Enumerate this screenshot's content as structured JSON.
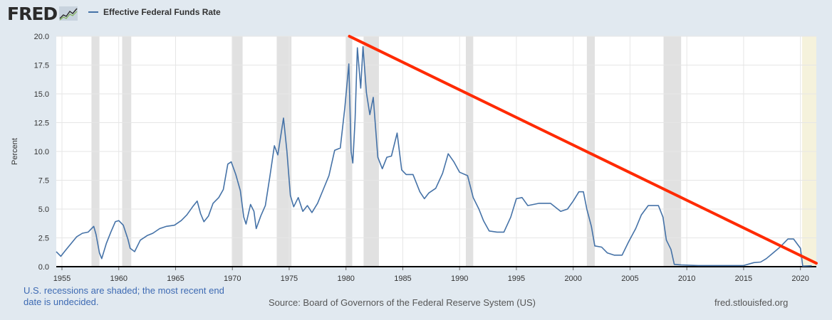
{
  "logo": {
    "text": "FRED"
  },
  "legend": {
    "series_label": "Effective Federal Funds Rate"
  },
  "footer": {
    "recession_note": "U.S. recessions are shaded; the most recent end date is undecided.",
    "source": "Source: Board of Governors of the Federal Reserve System (US)",
    "site": "fred.stlouisfed.org"
  },
  "colors": {
    "background": "#e1e9f0",
    "plot": "#ffffff",
    "series": "#4572a7",
    "recession": "#e1e1e1",
    "recent_recession": "#f5f2dc",
    "overlay": "#ff2a00",
    "logo_text": "#2a2a2a"
  },
  "chart_data": {
    "type": "line",
    "ylabel": "Percent",
    "ylim": [
      0,
      20
    ],
    "xlim": [
      1954.5,
      2021.4
    ],
    "y_ticks": [
      "0.0",
      "2.5",
      "5.0",
      "7.5",
      "10.0",
      "12.5",
      "15.0",
      "17.5",
      "20.0"
    ],
    "x_ticks": [
      "1955",
      "1960",
      "1965",
      "1970",
      "1975",
      "1980",
      "1985",
      "1990",
      "1995",
      "2000",
      "2005",
      "2010",
      "2015",
      "2020"
    ],
    "grid": true,
    "legend_position": "top-left",
    "recessions": [
      [
        1957.6,
        1958.3
      ],
      [
        1960.3,
        1961.1
      ],
      [
        1969.95,
        1970.9
      ],
      [
        1973.9,
        1975.2
      ],
      [
        1980.0,
        1980.55
      ],
      [
        1981.55,
        1982.9
      ],
      [
        1990.55,
        1991.2
      ],
      [
        2001.2,
        2001.9
      ],
      [
        2007.95,
        2009.5
      ]
    ],
    "recent_recession": [
      2020.15,
      2021.4
    ],
    "series": [
      {
        "name": "Effective Federal Funds Rate",
        "color": "#4572a7",
        "points": [
          [
            1954.5,
            1.3
          ],
          [
            1954.9,
            0.9
          ],
          [
            1955.3,
            1.4
          ],
          [
            1955.8,
            2.0
          ],
          [
            1956.3,
            2.6
          ],
          [
            1956.8,
            2.9
          ],
          [
            1957.3,
            3.0
          ],
          [
            1957.8,
            3.5
          ],
          [
            1958.0,
            2.8
          ],
          [
            1958.3,
            1.2
          ],
          [
            1958.5,
            0.7
          ],
          [
            1958.9,
            2.0
          ],
          [
            1959.3,
            3.0
          ],
          [
            1959.7,
            3.9
          ],
          [
            1960.0,
            4.0
          ],
          [
            1960.4,
            3.6
          ],
          [
            1960.8,
            2.4
          ],
          [
            1961.0,
            1.6
          ],
          [
            1961.4,
            1.3
          ],
          [
            1961.9,
            2.3
          ],
          [
            1962.5,
            2.7
          ],
          [
            1963.0,
            2.9
          ],
          [
            1963.6,
            3.3
          ],
          [
            1964.2,
            3.5
          ],
          [
            1964.9,
            3.6
          ],
          [
            1965.5,
            4.0
          ],
          [
            1966.0,
            4.5
          ],
          [
            1966.5,
            5.2
          ],
          [
            1966.9,
            5.7
          ],
          [
            1967.2,
            4.6
          ],
          [
            1967.5,
            3.9
          ],
          [
            1967.9,
            4.4
          ],
          [
            1968.3,
            5.5
          ],
          [
            1968.8,
            6.0
          ],
          [
            1969.2,
            6.7
          ],
          [
            1969.6,
            8.9
          ],
          [
            1969.9,
            9.1
          ],
          [
            1970.3,
            8.0
          ],
          [
            1970.7,
            6.6
          ],
          [
            1971.0,
            4.3
          ],
          [
            1971.2,
            3.7
          ],
          [
            1971.6,
            5.4
          ],
          [
            1971.9,
            4.8
          ],
          [
            1972.1,
            3.3
          ],
          [
            1972.5,
            4.4
          ],
          [
            1972.9,
            5.3
          ],
          [
            1973.3,
            7.8
          ],
          [
            1973.7,
            10.5
          ],
          [
            1974.0,
            9.7
          ],
          [
            1974.5,
            12.9
          ],
          [
            1974.8,
            10.0
          ],
          [
            1975.1,
            6.2
          ],
          [
            1975.4,
            5.2
          ],
          [
            1975.8,
            6.0
          ],
          [
            1976.2,
            4.8
          ],
          [
            1976.6,
            5.3
          ],
          [
            1977.0,
            4.7
          ],
          [
            1977.5,
            5.5
          ],
          [
            1978.0,
            6.7
          ],
          [
            1978.5,
            7.9
          ],
          [
            1979.0,
            10.1
          ],
          [
            1979.5,
            10.3
          ],
          [
            1979.9,
            13.8
          ],
          [
            1980.25,
            17.6
          ],
          [
            1980.45,
            10.0
          ],
          [
            1980.6,
            9.0
          ],
          [
            1980.8,
            12.8
          ],
          [
            1981.0,
            19.0
          ],
          [
            1981.3,
            15.5
          ],
          [
            1981.5,
            19.1
          ],
          [
            1981.8,
            15.1
          ],
          [
            1982.1,
            13.2
          ],
          [
            1982.4,
            14.7
          ],
          [
            1982.8,
            9.5
          ],
          [
            1983.2,
            8.5
          ],
          [
            1983.6,
            9.5
          ],
          [
            1984.0,
            9.6
          ],
          [
            1984.5,
            11.6
          ],
          [
            1984.9,
            8.4
          ],
          [
            1985.3,
            8.0
          ],
          [
            1985.9,
            8.0
          ],
          [
            1986.5,
            6.5
          ],
          [
            1986.9,
            5.9
          ],
          [
            1987.3,
            6.4
          ],
          [
            1987.9,
            6.8
          ],
          [
            1988.5,
            8.1
          ],
          [
            1989.0,
            9.8
          ],
          [
            1989.5,
            9.1
          ],
          [
            1990.0,
            8.2
          ],
          [
            1990.7,
            7.9
          ],
          [
            1991.2,
            6.0
          ],
          [
            1991.7,
            5.0
          ],
          [
            1992.1,
            4.0
          ],
          [
            1992.6,
            3.1
          ],
          [
            1993.3,
            3.0
          ],
          [
            1993.9,
            3.0
          ],
          [
            1994.5,
            4.3
          ],
          [
            1995.0,
            5.9
          ],
          [
            1995.5,
            6.0
          ],
          [
            1996.0,
            5.3
          ],
          [
            1997.0,
            5.5
          ],
          [
            1998.0,
            5.5
          ],
          [
            1998.9,
            4.8
          ],
          [
            1999.5,
            5.0
          ],
          [
            2000.0,
            5.7
          ],
          [
            2000.5,
            6.5
          ],
          [
            2000.9,
            6.5
          ],
          [
            2001.2,
            5.0
          ],
          [
            2001.6,
            3.5
          ],
          [
            2001.9,
            1.8
          ],
          [
            2002.5,
            1.7
          ],
          [
            2003.0,
            1.2
          ],
          [
            2003.6,
            1.0
          ],
          [
            2004.3,
            1.0
          ],
          [
            2004.9,
            2.2
          ],
          [
            2005.5,
            3.3
          ],
          [
            2006.0,
            4.5
          ],
          [
            2006.6,
            5.3
          ],
          [
            2007.5,
            5.3
          ],
          [
            2007.9,
            4.3
          ],
          [
            2008.2,
            2.3
          ],
          [
            2008.6,
            1.5
          ],
          [
            2008.9,
            0.2
          ],
          [
            2009.5,
            0.15
          ],
          [
            2011.0,
            0.1
          ],
          [
            2013.0,
            0.1
          ],
          [
            2015.0,
            0.1
          ],
          [
            2015.9,
            0.35
          ],
          [
            2016.5,
            0.4
          ],
          [
            2017.0,
            0.7
          ],
          [
            2017.6,
            1.2
          ],
          [
            2018.2,
            1.7
          ],
          [
            2018.9,
            2.4
          ],
          [
            2019.4,
            2.4
          ],
          [
            2019.7,
            2.0
          ],
          [
            2020.0,
            1.6
          ],
          [
            2020.2,
            0.05
          ],
          [
            2021.0,
            0.08
          ]
        ]
      }
    ],
    "overlay_line": {
      "from": [
        1980.3,
        20.0
      ],
      "to": [
        2021.4,
        0.3
      ],
      "color": "#ff2a00"
    }
  }
}
